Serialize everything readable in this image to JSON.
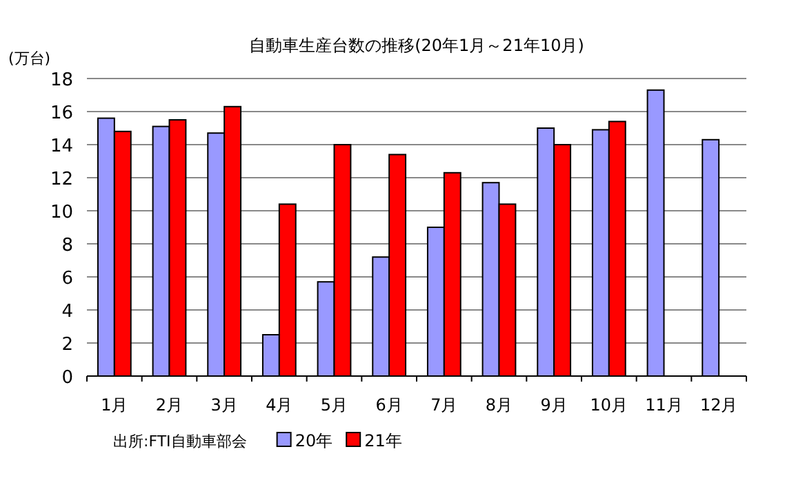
{
  "chart_data": {
    "type": "bar",
    "title": "自動車生産台数の推移(20年1月～21年10月)",
    "ylabel": "(万台)",
    "categories": [
      "1月",
      "2月",
      "3月",
      "4月",
      "5月",
      "6月",
      "7月",
      "8月",
      "9月",
      "10月",
      "11月",
      "12月"
    ],
    "series": [
      {
        "name": "20年",
        "color": "#9999ff",
        "values": [
          15.6,
          15.1,
          14.7,
          2.5,
          5.7,
          7.2,
          9.0,
          11.7,
          15.0,
          14.9,
          17.3,
          14.3
        ]
      },
      {
        "name": "21年",
        "color": "#ff0000",
        "values": [
          14.8,
          15.5,
          16.3,
          10.4,
          14.0,
          13.4,
          12.3,
          10.4,
          14.0,
          15.4,
          null,
          null
        ]
      }
    ],
    "ylim": [
      0,
      18
    ],
    "yticks": [
      0,
      2,
      4,
      6,
      8,
      10,
      12,
      14,
      16,
      18
    ],
    "grid": "y",
    "legend": "bottom",
    "annotations": [
      "出所:FTI自動車部会"
    ]
  }
}
